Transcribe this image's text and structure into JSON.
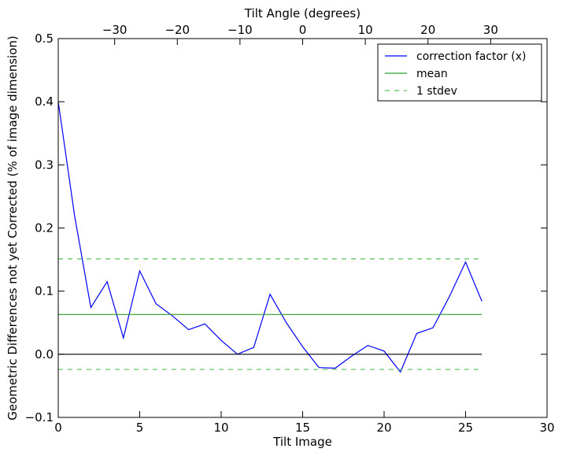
{
  "chart_data": {
    "type": "line",
    "title": "",
    "xlabel": "Tilt Image",
    "ylabel": "Geometric Differences not yet Corrected (% of image dimension)",
    "top_xlabel": "Tilt Angle (degrees)",
    "xlim": [
      0,
      30
    ],
    "ylim": [
      -0.1,
      0.5
    ],
    "top_xlim": [
      -39,
      39
    ],
    "x_ticks": [
      0,
      5,
      10,
      15,
      20,
      25,
      30
    ],
    "x_tick_labels": [
      "0",
      "5",
      "10",
      "15",
      "20",
      "25",
      "30"
    ],
    "y_ticks": [
      -0.1,
      0.0,
      0.1,
      0.2,
      0.3,
      0.4,
      0.5
    ],
    "y_tick_labels": [
      "−0.1",
      "0.0",
      "0.1",
      "0.2",
      "0.3",
      "0.4",
      "0.5"
    ],
    "top_ticks": [
      -30,
      -20,
      -10,
      0,
      10,
      20,
      30
    ],
    "top_tick_labels": [
      "−30",
      "−20",
      "−10",
      "0",
      "10",
      "20",
      "30"
    ],
    "grid": false,
    "legend_position": "top-right",
    "series": [
      {
        "name": "correction factor (x)",
        "color": "#0000ff",
        "style": "solid",
        "x": [
          0,
          1,
          2,
          3,
          4,
          5,
          6,
          7,
          8,
          9,
          10,
          11,
          12,
          13,
          14,
          15,
          16,
          17,
          18,
          19,
          20,
          21,
          22,
          23,
          24,
          25,
          26
        ],
        "y": [
          0.4,
          0.22,
          0.074,
          0.115,
          0.026,
          0.132,
          0.08,
          0.061,
          0.039,
          0.048,
          0.022,
          0.0,
          0.011,
          0.095,
          0.05,
          0.012,
          -0.021,
          -0.022,
          -0.003,
          0.014,
          0.005,
          -0.028,
          0.033,
          0.042,
          0.091,
          0.146,
          0.084
        ]
      },
      {
        "name": "mean",
        "color": "#2ca02c",
        "style": "solid",
        "x": [
          0,
          26
        ],
        "y": [
          0.063,
          0.063
        ]
      },
      {
        "name": "1 stdev",
        "color": "#5cc15c",
        "style": "dashed",
        "x": [
          0,
          26
        ],
        "y": [
          0.151,
          0.151
        ]
      },
      {
        "name": "",
        "color": "#5cc15c",
        "style": "dashed",
        "x": [
          0,
          26
        ],
        "y": [
          -0.024,
          -0.024
        ]
      },
      {
        "name": "",
        "color": "#000000",
        "style": "solid",
        "x": [
          0,
          26
        ],
        "y": [
          0.0,
          0.0
        ]
      }
    ],
    "legend": [
      "correction factor (x)",
      "mean",
      "1 stdev"
    ]
  }
}
